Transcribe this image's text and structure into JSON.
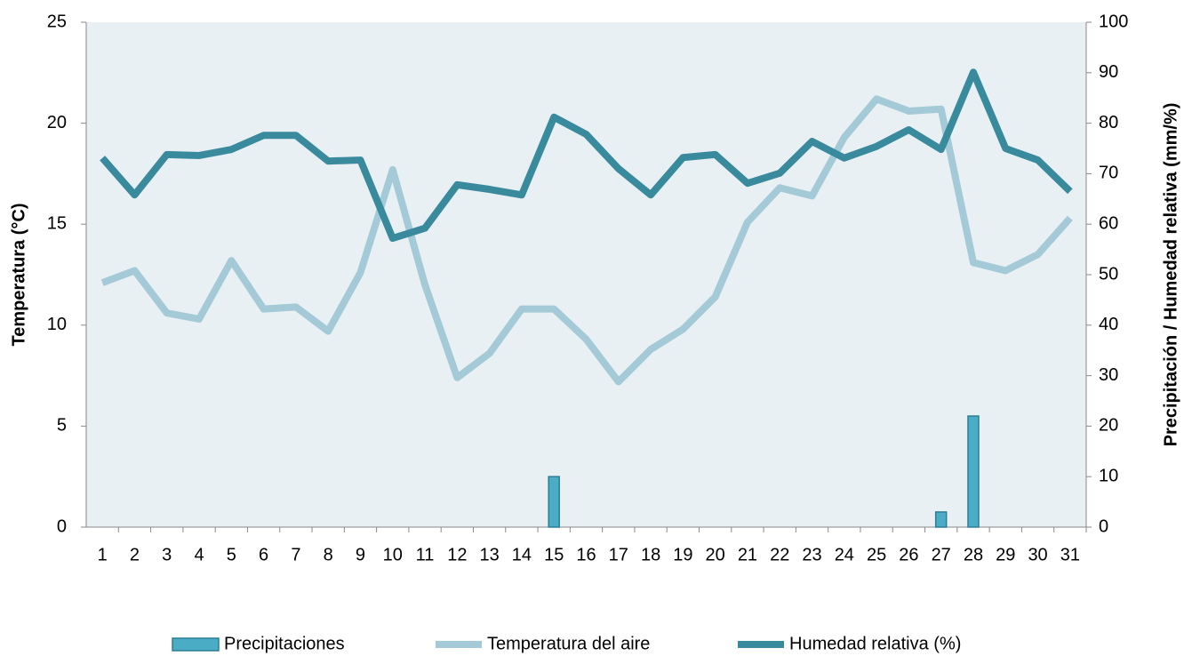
{
  "chart_data": {
    "type": "combo",
    "categories": [
      "1",
      "2",
      "3",
      "4",
      "5",
      "6",
      "7",
      "8",
      "9",
      "10",
      "11",
      "12",
      "13",
      "14",
      "15",
      "16",
      "17",
      "18",
      "19",
      "20",
      "21",
      "22",
      "23",
      "24",
      "25",
      "26",
      "27",
      "28",
      "29",
      "30",
      "31"
    ],
    "ylabel": "Temperatura (°C)",
    "y2label": "Precipitación / Humedad relativa (mm/%)",
    "ylim": [
      0,
      25
    ],
    "yticks": [
      0,
      5,
      10,
      15,
      20,
      25
    ],
    "y2lim": [
      0,
      100
    ],
    "y2ticks": [
      0,
      10,
      20,
      30,
      40,
      50,
      60,
      70,
      80,
      90,
      100
    ],
    "background": "#e8f0f4",
    "series": [
      {
        "name": "Precipitaciones",
        "type": "bar",
        "axis": "y2",
        "color": "#4bacc6",
        "edge": "#2e7d96",
        "values": [
          0,
          0,
          0,
          0,
          0,
          0,
          0,
          0,
          0,
          0,
          0,
          0,
          0,
          0,
          10,
          0,
          0,
          0,
          0,
          0,
          0,
          0,
          0,
          0,
          0,
          0,
          3,
          22,
          0,
          0,
          0
        ]
      },
      {
        "name": "Temperatura del aire",
        "type": "line",
        "axis": "y",
        "color": "#a5cad7",
        "values": [
          12.1,
          12.7,
          10.6,
          10.3,
          13.2,
          10.8,
          10.9,
          9.7,
          12.6,
          17.7,
          12.0,
          7.4,
          8.6,
          10.8,
          10.8,
          9.3,
          7.2,
          8.8,
          9.8,
          11.4,
          15.1,
          16.8,
          16.4,
          19.3,
          21.2,
          20.6,
          20.7,
          13.1,
          12.7,
          13.5,
          15.3
        ]
      },
      {
        "name": "Humedad relativa (%)",
        "type": "line",
        "axis": "y2",
        "color": "#3a8a9e",
        "values": [
          73.1,
          65.8,
          73.8,
          73.6,
          74.8,
          77.6,
          77.6,
          72.5,
          72.7,
          57.2,
          59.2,
          67.8,
          66.9,
          65.8,
          81.2,
          77.8,
          71.0,
          65.8,
          73.2,
          73.8,
          68.1,
          70.1,
          76.4,
          73.1,
          75.4,
          78.7,
          74.8,
          90.1,
          75.0,
          72.7,
          66.5
        ]
      }
    ]
  }
}
